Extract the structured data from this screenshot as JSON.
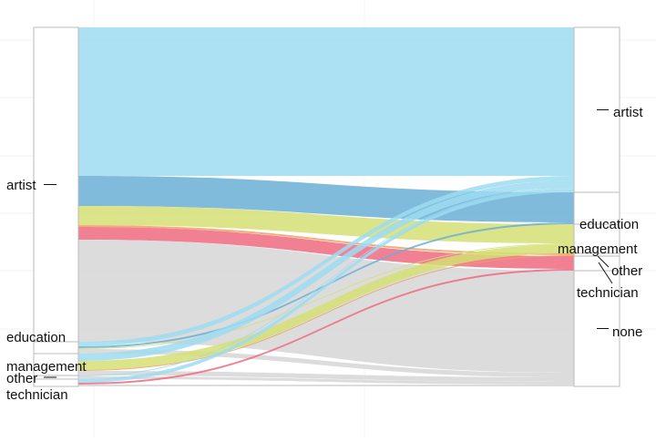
{
  "chart_data": {
    "type": "alluvial",
    "title": "",
    "axes": [
      "",
      ""
    ],
    "left_strata": [
      "artist",
      "education",
      "management",
      "other",
      "technician"
    ],
    "right_strata": [
      "artist",
      "education",
      "management",
      "other",
      "technician",
      "none"
    ],
    "colors": {
      "artist": "#9edcf1",
      "education": "#6aafd6",
      "management": "#d5df73",
      "other": "#f0a060",
      "technician": "#ee6a80",
      "none": "#d6d6d6"
    },
    "flows": [
      {
        "from": "artist",
        "to": "artist",
        "value": 163
      },
      {
        "from": "artist",
        "to": "education",
        "value": 33
      },
      {
        "from": "artist",
        "to": "management",
        "value": 21
      },
      {
        "from": "artist",
        "to": "other",
        "value": 2
      },
      {
        "from": "artist",
        "to": "technician",
        "value": 14
      },
      {
        "from": "artist",
        "to": "none",
        "value": 112
      },
      {
        "from": "education",
        "to": "artist",
        "value": 5
      },
      {
        "from": "education",
        "to": "education",
        "value": 2
      },
      {
        "from": "education",
        "to": "management",
        "value": 1
      },
      {
        "from": "education",
        "to": "none",
        "value": 5
      },
      {
        "from": "management",
        "to": "artist",
        "value": 8
      },
      {
        "from": "management",
        "to": "management",
        "value": 10
      },
      {
        "from": "management",
        "to": "other",
        "value": 1
      },
      {
        "from": "management",
        "to": "none",
        "value": 5
      },
      {
        "from": "other",
        "to": "artist",
        "value": 1
      },
      {
        "from": "other",
        "to": "none",
        "value": 3
      },
      {
        "from": "technician",
        "to": "artist",
        "value": 4
      },
      {
        "from": "technician",
        "to": "technician",
        "value": 2
      },
      {
        "from": "technician",
        "to": "none",
        "value": 2
      }
    ]
  }
}
